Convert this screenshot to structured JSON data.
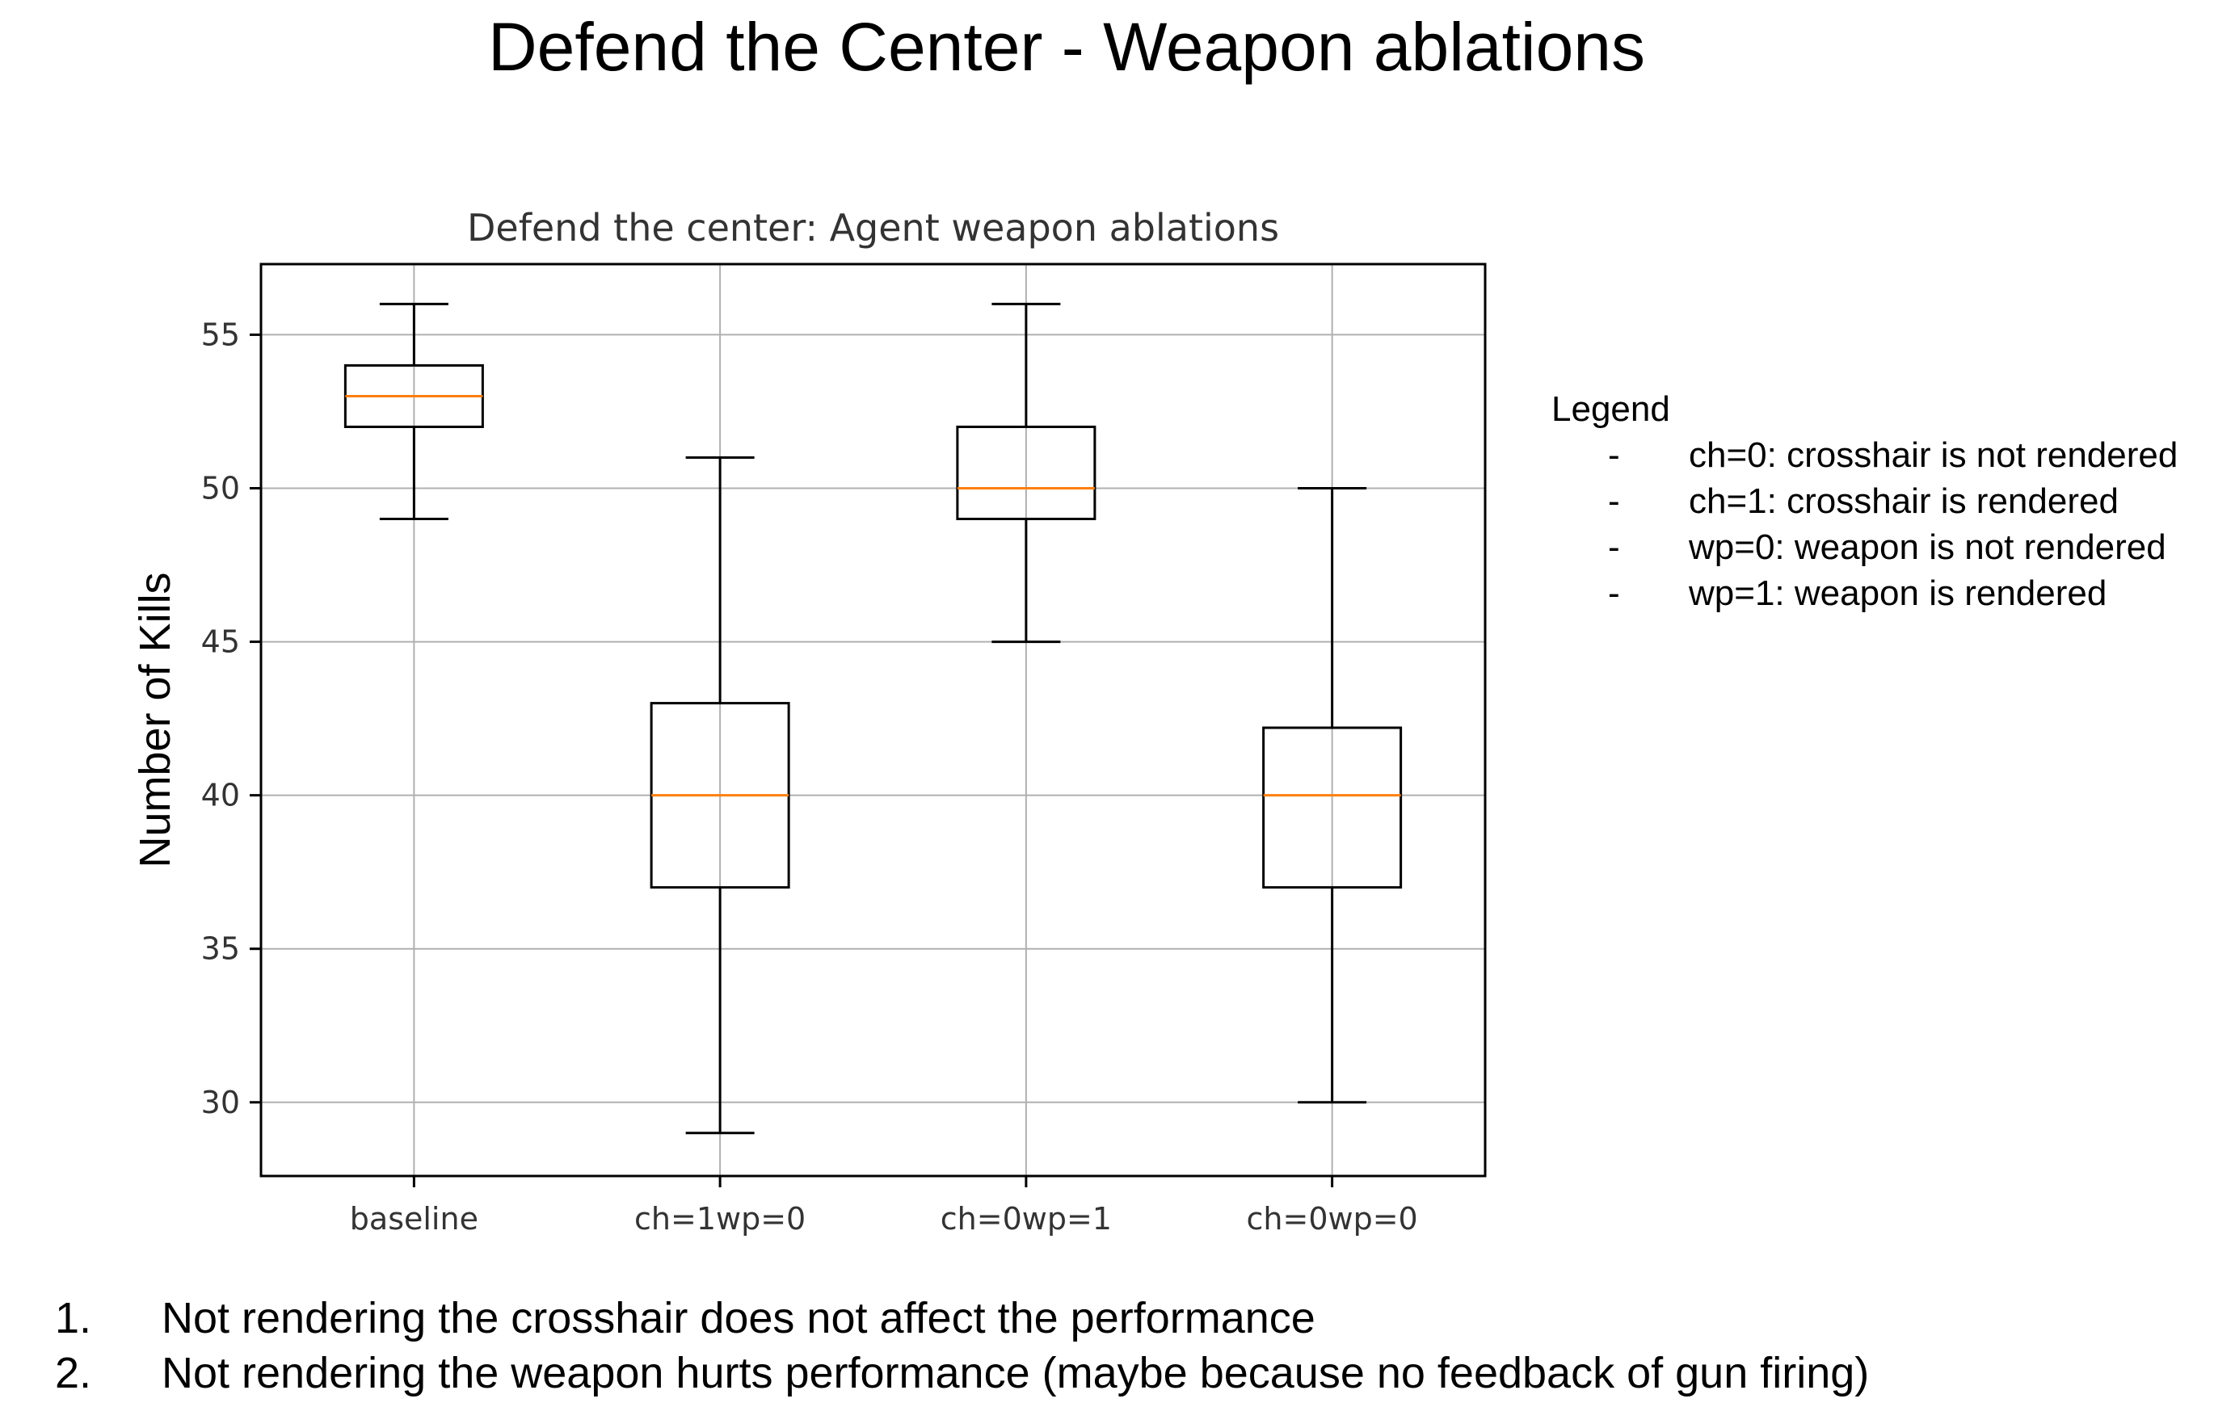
{
  "slide_title": "Defend the Center - Weapon ablations",
  "chart_data": {
    "type": "box",
    "title": "Defend the center: Agent weapon ablations",
    "xlabel": "",
    "ylabel": "Number of Kills",
    "ylim": [
      27.6,
      57.3
    ],
    "yticks": [
      30,
      35,
      40,
      45,
      50,
      55
    ],
    "grid": true,
    "categories": [
      "baseline",
      "ch=1wp=0",
      "ch=0wp=1",
      "ch=0wp=0"
    ],
    "boxes": [
      {
        "category": "baseline",
        "whisker_low": 49,
        "q1": 52,
        "median": 53,
        "q3": 54,
        "whisker_high": 56
      },
      {
        "category": "ch=1wp=0",
        "whisker_low": 29,
        "q1": 37,
        "median": 40,
        "q3": 43,
        "whisker_high": 51
      },
      {
        "category": "ch=0wp=1",
        "whisker_low": 45,
        "q1": 49,
        "median": 50,
        "q3": 52,
        "whisker_high": 56
      },
      {
        "category": "ch=0wp=0",
        "whisker_low": 30,
        "q1": 37,
        "median": 40,
        "q3": 42.2,
        "whisker_high": 50
      }
    ],
    "colors": {
      "box": "#000000",
      "median": "#ff7f0e",
      "grid": "#b0b0b0"
    }
  },
  "legend": {
    "title": "Legend",
    "items": [
      {
        "dash": "-",
        "text": "ch=0: crosshair is not rendered"
      },
      {
        "dash": "-",
        "text": "ch=1: crosshair is rendered"
      },
      {
        "dash": "-",
        "text": "wp=0: weapon is not rendered"
      },
      {
        "dash": "-",
        "text": "wp=1: weapon is rendered"
      }
    ]
  },
  "notes": [
    {
      "num": "1.",
      "text": "Not rendering the crosshair does not affect the performance"
    },
    {
      "num": "2.",
      "text": "Not rendering the weapon hurts performance (maybe because no feedback of gun firing)"
    }
  ]
}
